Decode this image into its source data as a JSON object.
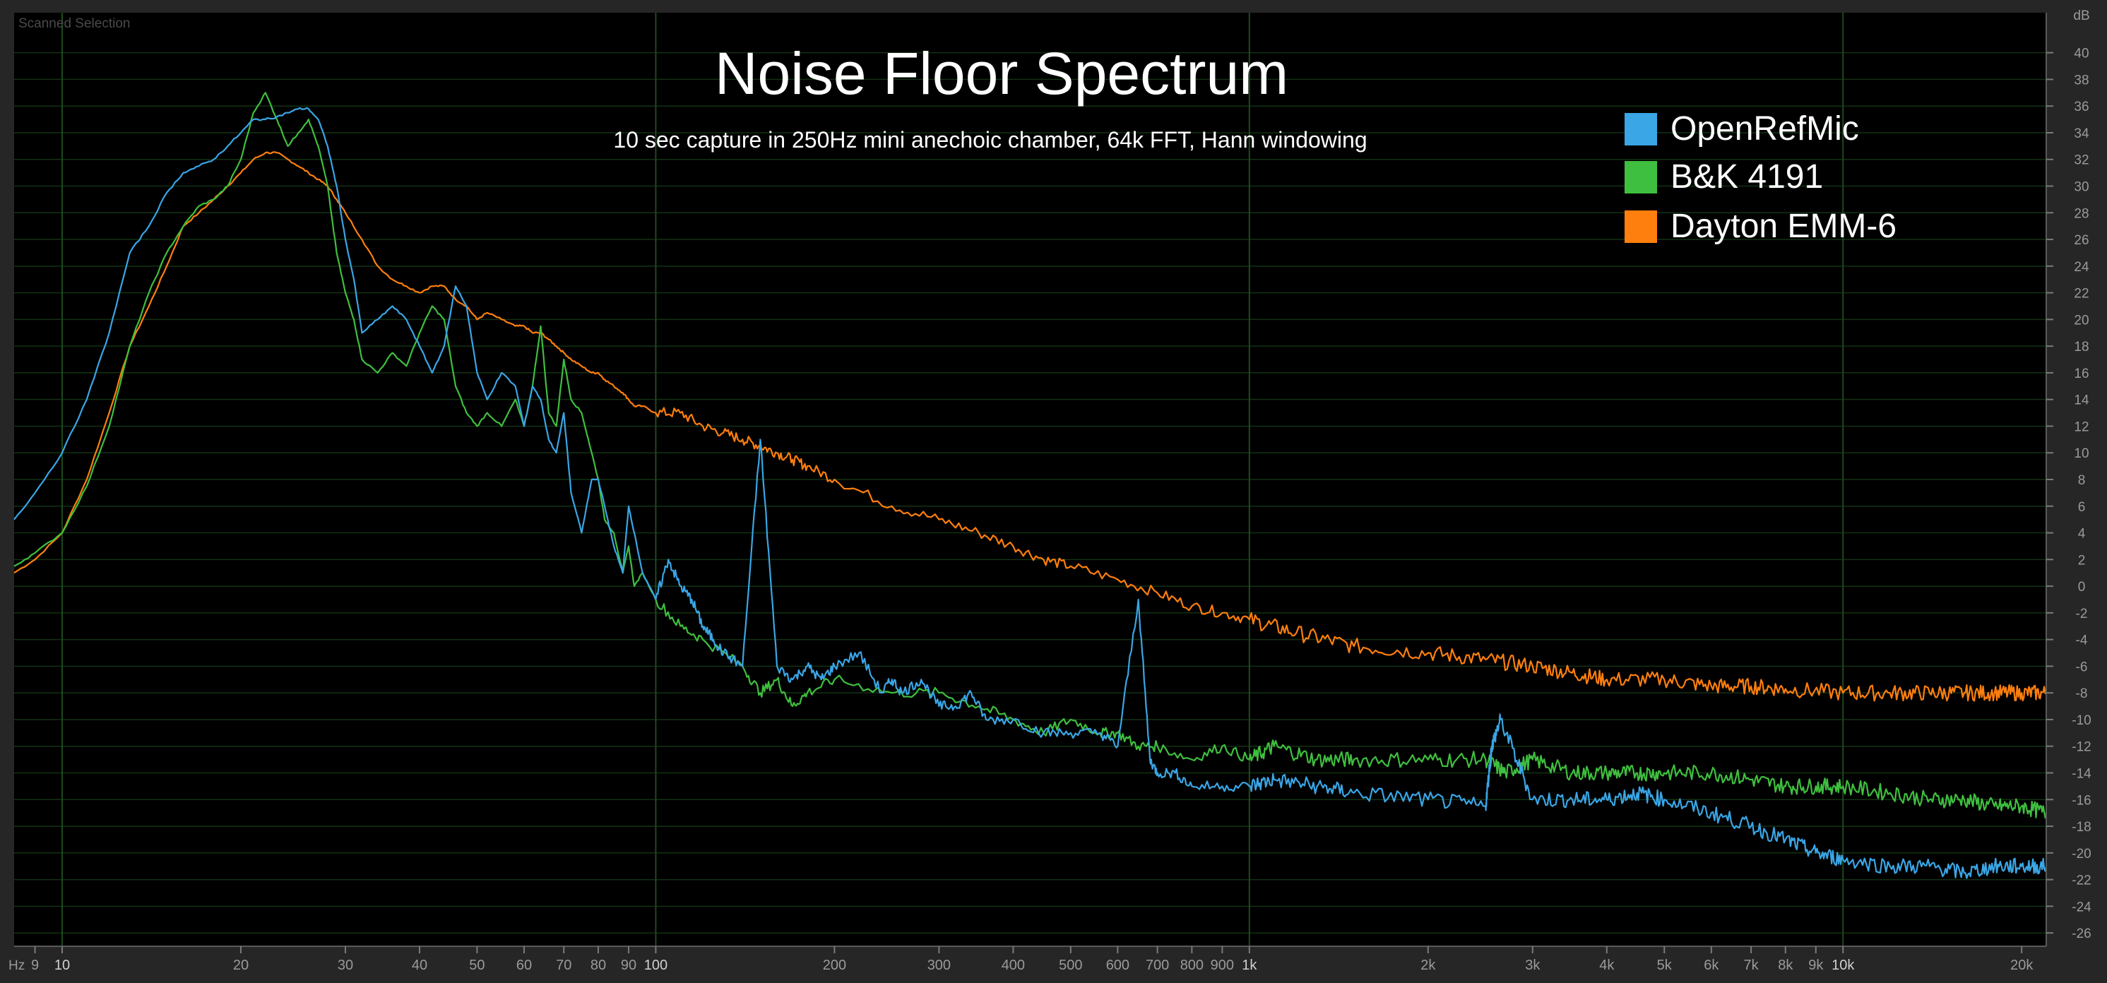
{
  "window": {
    "corner_label": "Scanned Selection"
  },
  "colors": {
    "background": "#262626",
    "plot_bg": "#000000",
    "grid_major": "#1e4a1e",
    "grid_minor": "#133213",
    "tick_text": "#9a9a9a",
    "title_text": "#ffffff",
    "OpenRefMic": "#3aa6e6",
    "B&K 4191": "#3fbf3f",
    "Dayton EMM-6": "#ff7f0e"
  },
  "chart_data": {
    "type": "line",
    "title": "Noise Floor Spectrum",
    "subtitle": "10 sec capture in 250Hz mini anechoic chamber, 64k FFT, Hann windowing",
    "x_scale": "log",
    "x_unit_label": "Hz",
    "y_unit_label": "dB",
    "xlim": [
      8.3,
      22000
    ],
    "ylim": [
      -27,
      43
    ],
    "grid": true,
    "legend_position": "top-right",
    "x_tick_labels": [
      {
        "v": 9,
        "t": "9"
      },
      {
        "v": 10,
        "t": "10"
      },
      {
        "v": 20,
        "t": "20"
      },
      {
        "v": 30,
        "t": "30"
      },
      {
        "v": 40,
        "t": "40"
      },
      {
        "v": 50,
        "t": "50"
      },
      {
        "v": 60,
        "t": "60"
      },
      {
        "v": 70,
        "t": "70"
      },
      {
        "v": 80,
        "t": "80"
      },
      {
        "v": 90,
        "t": "90"
      },
      {
        "v": 100,
        "t": "100"
      },
      {
        "v": 200,
        "t": "200"
      },
      {
        "v": 300,
        "t": "300"
      },
      {
        "v": 400,
        "t": "400"
      },
      {
        "v": 500,
        "t": "500"
      },
      {
        "v": 600,
        "t": "600"
      },
      {
        "v": 700,
        "t": "700"
      },
      {
        "v": 800,
        "t": "800"
      },
      {
        "v": 900,
        "t": "900"
      },
      {
        "v": 1000,
        "t": "1k"
      },
      {
        "v": 2000,
        "t": "2k"
      },
      {
        "v": 3000,
        "t": "3k"
      },
      {
        "v": 4000,
        "t": "4k"
      },
      {
        "v": 5000,
        "t": "5k"
      },
      {
        "v": 6000,
        "t": "6k"
      },
      {
        "v": 7000,
        "t": "7k"
      },
      {
        "v": 8000,
        "t": "8k"
      },
      {
        "v": 9000,
        "t": "9k"
      },
      {
        "v": 10000,
        "t": "10k"
      },
      {
        "v": 20000,
        "t": "20k"
      }
    ],
    "x_major_ticks": [
      10,
      100,
      1000,
      10000
    ],
    "y_ticks": [
      40,
      38,
      36,
      34,
      32,
      30,
      28,
      26,
      24,
      22,
      20,
      18,
      16,
      14,
      12,
      10,
      8,
      6,
      4,
      2,
      0,
      -2,
      -4,
      -6,
      -8,
      -10,
      -12,
      -14,
      -16,
      -18,
      -20,
      -22,
      -24,
      -26
    ],
    "series": [
      {
        "name": "OpenRefMic",
        "color": "#3aa6e6",
        "x": [
          8.3,
          9,
          10,
          11,
          12,
          13,
          14,
          15,
          16,
          17,
          18,
          19,
          20,
          21,
          22,
          23,
          24,
          25,
          26,
          27,
          28,
          29,
          30,
          31,
          32,
          34,
          36,
          38,
          40,
          42,
          44,
          46,
          48,
          50,
          52,
          55,
          58,
          60,
          62,
          64,
          66,
          68,
          70,
          72,
          75,
          78,
          80,
          82,
          85,
          88,
          90,
          92,
          95,
          100,
          105,
          110,
          115,
          120,
          125,
          130,
          140,
          150,
          160,
          170,
          180,
          190,
          200,
          220,
          240,
          250,
          260,
          280,
          300,
          320,
          340,
          360,
          400,
          450,
          500,
          560,
          600,
          650,
          680,
          700,
          750,
          800,
          900,
          1000,
          1100,
          1300,
          1500,
          2000,
          2500,
          2560,
          2650,
          3000,
          3500,
          4000,
          4500,
          5000,
          6000,
          7000,
          8000,
          9000,
          10000,
          12000,
          14000,
          16000,
          18000,
          20000,
          22000
        ],
        "y": [
          5,
          7,
          10,
          14,
          19,
          25,
          27,
          29.5,
          31,
          31.5,
          32,
          33,
          34,
          35,
          35,
          35.2,
          35.5,
          35.8,
          35.8,
          35,
          33,
          30,
          26,
          23,
          19,
          20,
          21,
          20,
          18,
          16,
          18,
          22.5,
          21,
          16,
          14,
          16,
          15,
          12,
          15,
          14,
          11,
          10,
          13,
          7,
          4,
          8,
          8,
          6,
          3,
          1,
          6,
          4,
          1,
          -1,
          2,
          0,
          -1,
          -3,
          -4,
          -5,
          -6,
          11,
          -6,
          -7,
          -6,
          -7,
          -6,
          -5,
          -8,
          -7,
          -8,
          -7,
          -9,
          -9,
          -8,
          -10,
          -10,
          -11,
          -11,
          -11,
          -12,
          -1,
          -13,
          -14,
          -14,
          -15,
          -15,
          -15,
          -14.5,
          -15,
          -15.5,
          -16,
          -16.5,
          -12,
          -10,
          -16,
          -16,
          -16,
          -15.5,
          -16,
          -17,
          -18,
          -19,
          -20,
          -20.5,
          -21,
          -21,
          -21.5,
          -21,
          -21,
          -21
        ]
      },
      {
        "name": "B&K 4191",
        "color": "#3fbf3f",
        "x": [
          8.3,
          9,
          10,
          11,
          12,
          13,
          14,
          15,
          16,
          17,
          18,
          19,
          20,
          21,
          22,
          23,
          24,
          25,
          26,
          27,
          28,
          29,
          30,
          31,
          32,
          34,
          36,
          38,
          40,
          42,
          44,
          46,
          48,
          50,
          52,
          55,
          58,
          60,
          62,
          64,
          66,
          68,
          70,
          72,
          75,
          78,
          80,
          82,
          85,
          88,
          90,
          92,
          95,
          100,
          110,
          120,
          140,
          150,
          160,
          170,
          180,
          200,
          250,
          300,
          350,
          400,
          450,
          500,
          560,
          600,
          650,
          700,
          800,
          900,
          1000,
          1100,
          1300,
          1500,
          2000,
          2500,
          2700,
          3000,
          3500,
          4000,
          4500,
          5000,
          6000,
          7000,
          8000,
          9000,
          10000,
          12000,
          14000,
          16000,
          18000,
          20000,
          22000
        ],
        "y": [
          1.5,
          2.5,
          4,
          7.5,
          12,
          18,
          22,
          25,
          27,
          28.5,
          29,
          30,
          32,
          35.5,
          37,
          35,
          33,
          34,
          35,
          33,
          30,
          25,
          22,
          20,
          17,
          16,
          17.5,
          16.5,
          19,
          21,
          20,
          15,
          13,
          12,
          13,
          12,
          14,
          12,
          15,
          19.5,
          13,
          12,
          17,
          14,
          13,
          10,
          8,
          5,
          4,
          1,
          3,
          0,
          1,
          -1,
          -3,
          -4,
          -6,
          -8,
          -7,
          -9,
          -8,
          -7,
          -8,
          -8,
          -9,
          -10,
          -11,
          -10,
          -11,
          -11,
          -12,
          -12,
          -13,
          -12,
          -13,
          -12,
          -13,
          -13,
          -13,
          -13,
          -14,
          -13,
          -14,
          -14,
          -14,
          -14,
          -14,
          -14.5,
          -15,
          -15,
          -15,
          -15.5,
          -16,
          -16,
          -16.5,
          -16.5,
          -17
        ]
      },
      {
        "name": "Dayton EMM-6",
        "color": "#ff7f0e",
        "x": [
          8.3,
          9,
          10,
          11,
          12,
          13,
          14,
          15,
          16,
          17,
          18,
          19,
          20,
          21,
          22,
          23,
          24,
          25,
          26,
          27,
          28,
          29,
          30,
          32,
          34,
          36,
          38,
          40,
          42,
          44,
          46,
          48,
          50,
          52,
          55,
          58,
          60,
          62,
          64,
          66,
          68,
          70,
          72,
          75,
          78,
          80,
          82,
          85,
          88,
          90,
          92,
          95,
          100,
          110,
          120,
          130,
          140,
          150,
          160,
          170,
          180,
          200,
          250,
          300,
          350,
          400,
          450,
          500,
          600,
          700,
          800,
          900,
          1000,
          1200,
          1500,
          2000,
          2500,
          3000,
          3500,
          4000,
          5000,
          6000,
          7000,
          8000,
          10000,
          12000,
          14000,
          16000,
          18000,
          20000,
          22000
        ],
        "y": [
          1,
          2,
          4,
          8,
          13,
          18,
          21,
          24,
          27,
          28,
          29,
          30,
          31,
          32,
          32.5,
          32.5,
          32,
          31.5,
          31,
          30.5,
          30,
          29,
          28,
          26,
          24,
          23,
          22.5,
          22,
          22.5,
          22.5,
          21.5,
          21,
          20,
          20.5,
          20,
          19.5,
          19.5,
          19,
          19,
          18.5,
          18,
          17.5,
          17,
          16.5,
          16,
          16,
          15.5,
          15,
          14.5,
          14,
          13.5,
          13.5,
          13,
          13,
          12,
          11.5,
          11,
          10.5,
          10,
          9.5,
          9,
          8,
          6,
          5,
          4,
          3,
          2,
          1.5,
          0.5,
          -0.5,
          -1.5,
          -2,
          -2.5,
          -3.5,
          -4.5,
          -5,
          -5.5,
          -6,
          -6.5,
          -7,
          -7,
          -7.5,
          -7.5,
          -7.7,
          -8,
          -8,
          -8,
          -8,
          -8,
          -8,
          -8
        ]
      }
    ]
  }
}
